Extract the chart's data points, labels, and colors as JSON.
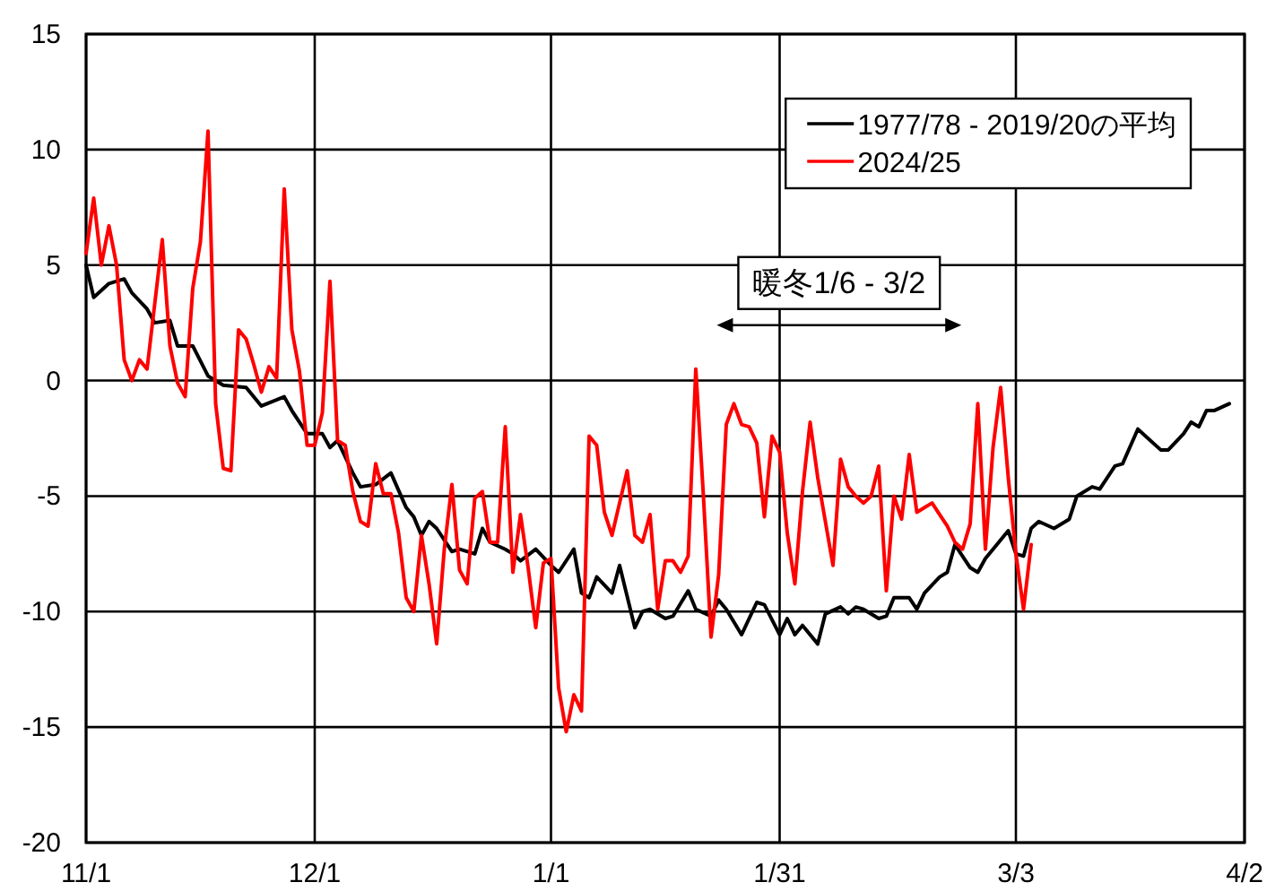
{
  "chart_data": {
    "type": "line",
    "xlim": [
      "2024-11-01",
      "2025-04-02"
    ],
    "xticks": [
      {
        "value": "2024-11-01",
        "label": "11/1"
      },
      {
        "value": "2024-12-01",
        "label": "12/1"
      },
      {
        "value": "2025-01-01",
        "label": "1/1"
      },
      {
        "value": "2025-01-31",
        "label": "1/31"
      },
      {
        "value": "2025-03-03",
        "label": "3/3"
      },
      {
        "value": "2025-04-02",
        "label": "4/2"
      }
    ],
    "ylim": [
      -20,
      15
    ],
    "yticks": [
      -20,
      -15,
      -10,
      -5,
      0,
      5,
      10,
      15
    ],
    "grid": true,
    "legend": "top right",
    "series": [
      {
        "name": "1977/78 - 2019/20の平均",
        "color": "#000000",
        "x": [
          "2024-11-01",
          "2024-11-02",
          "2024-11-04",
          "2024-11-06",
          "2024-11-07",
          "2024-11-09",
          "2024-11-10",
          "2024-11-12",
          "2024-11-13",
          "2024-11-15",
          "2024-11-17",
          "2024-11-19",
          "2024-11-22",
          "2024-11-24",
          "2024-11-27",
          "2024-11-28",
          "2024-11-30",
          "2024-12-02",
          "2024-12-03",
          "2024-12-04",
          "2024-12-06",
          "2024-12-07",
          "2024-12-09",
          "2024-12-11",
          "2024-12-13",
          "2024-12-14",
          "2024-12-15",
          "2024-12-16",
          "2024-12-17",
          "2024-12-19",
          "2024-12-20",
          "2024-12-22",
          "2024-12-23",
          "2024-12-24",
          "2024-12-26",
          "2024-12-27",
          "2024-12-28",
          "2024-12-30",
          "2025-01-01",
          "2025-01-02",
          "2025-01-04",
          "2025-01-05",
          "2025-01-06",
          "2025-01-07",
          "2025-01-09",
          "2025-01-10",
          "2025-01-12",
          "2025-01-13",
          "2025-01-14",
          "2025-01-16",
          "2025-01-17",
          "2025-01-19",
          "2025-01-20",
          "2025-01-22",
          "2025-01-23",
          "2025-01-24",
          "2025-01-26",
          "2025-01-28",
          "2025-01-29",
          "2025-01-31",
          "2025-02-01",
          "2025-02-02",
          "2025-02-03",
          "2025-02-05",
          "2025-02-06",
          "2025-02-08",
          "2025-02-09",
          "2025-02-10",
          "2025-02-11",
          "2025-02-13",
          "2025-02-14",
          "2025-02-15",
          "2025-02-17",
          "2025-02-18",
          "2025-02-19",
          "2025-02-21",
          "2025-02-22",
          "2025-02-23",
          "2025-02-25",
          "2025-02-26",
          "2025-02-27",
          "2025-02-28",
          "2025-03-02",
          "2025-03-03",
          "2025-03-04",
          "2025-03-05",
          "2025-03-06",
          "2025-03-08",
          "2025-03-10",
          "2025-03-11",
          "2025-03-13",
          "2025-03-14",
          "2025-03-16",
          "2025-03-17",
          "2025-03-19",
          "2025-03-20",
          "2025-03-22",
          "2025-03-23",
          "2025-03-25",
          "2025-03-26",
          "2025-03-27",
          "2025-03-28",
          "2025-03-29",
          "2025-03-31"
        ],
        "values": [
          5.0,
          3.6,
          4.2,
          4.4,
          3.8,
          3.1,
          2.5,
          2.6,
          1.5,
          1.5,
          0.2,
          -0.2,
          -0.3,
          -1.1,
          -0.7,
          -1.3,
          -2.3,
          -2.3,
          -2.9,
          -2.6,
          -4.0,
          -4.6,
          -4.5,
          -4.0,
          -5.5,
          -5.9,
          -6.7,
          -6.1,
          -6.4,
          -7.4,
          -7.3,
          -7.5,
          -6.4,
          -7.0,
          -7.3,
          -7.5,
          -7.8,
          -7.3,
          -8.0,
          -8.3,
          -7.3,
          -9.2,
          -9.4,
          -8.5,
          -9.2,
          -8.0,
          -10.7,
          -10.0,
          -9.9,
          -10.3,
          -10.2,
          -9.1,
          -9.9,
          -10.2,
          -9.5,
          -9.9,
          -11.0,
          -9.6,
          -9.7,
          -11.0,
          -10.3,
          -11.0,
          -10.6,
          -11.4,
          -10.1,
          -9.8,
          -10.1,
          -9.8,
          -9.9,
          -10.3,
          -10.2,
          -9.4,
          -9.4,
          -9.9,
          -9.2,
          -8.5,
          -8.3,
          -7.1,
          -8.1,
          -8.3,
          -7.7,
          -7.3,
          -6.5,
          -7.5,
          -7.6,
          -6.4,
          -6.1,
          -6.4,
          -6.0,
          -5.0,
          -4.6,
          -4.7,
          -3.7,
          -3.6,
          -2.1,
          -2.4,
          -3.0,
          -3.0,
          -2.3,
          -1.8,
          -2.0,
          -1.3,
          -1.3,
          -1.0
        ]
      },
      {
        "name": "2024/25",
        "color": "#ff0000",
        "x": [
          "2024-11-01",
          "2024-11-02",
          "2024-11-03",
          "2024-11-04",
          "2024-11-05",
          "2024-11-06",
          "2024-11-07",
          "2024-11-08",
          "2024-11-09",
          "2024-11-11",
          "2024-11-12",
          "2024-11-13",
          "2024-11-14",
          "2024-11-15",
          "2024-11-16",
          "2024-11-17",
          "2024-11-18",
          "2024-11-19",
          "2024-11-20",
          "2024-11-21",
          "2024-11-22",
          "2024-11-23",
          "2024-11-24",
          "2024-11-25",
          "2024-11-26",
          "2024-11-27",
          "2024-11-28",
          "2024-11-29",
          "2024-11-30",
          "2024-12-01",
          "2024-12-02",
          "2024-12-03",
          "2024-12-04",
          "2024-12-05",
          "2024-12-06",
          "2024-12-07",
          "2024-12-08",
          "2024-12-09",
          "2024-12-10",
          "2024-12-11",
          "2024-12-12",
          "2024-12-13",
          "2024-12-14",
          "2024-12-15",
          "2024-12-16",
          "2024-12-17",
          "2024-12-18",
          "2024-12-19",
          "2024-12-20",
          "2024-12-21",
          "2024-12-22",
          "2024-12-23",
          "2024-12-24",
          "2024-12-25",
          "2024-12-26",
          "2024-12-27",
          "2024-12-28",
          "2024-12-29",
          "2024-12-30",
          "2024-12-31",
          "2025-01-01",
          "2025-01-02",
          "2025-01-03",
          "2025-01-04",
          "2025-01-05",
          "2025-01-06",
          "2025-01-07",
          "2025-01-08",
          "2025-01-09",
          "2025-01-10",
          "2025-01-11",
          "2025-01-12",
          "2025-01-13",
          "2025-01-14",
          "2025-01-15",
          "2025-01-16",
          "2025-01-17",
          "2025-01-18",
          "2025-01-19",
          "2025-01-20",
          "2025-01-21",
          "2025-01-22",
          "2025-01-23",
          "2025-01-24",
          "2025-01-25",
          "2025-01-26",
          "2025-01-27",
          "2025-01-28",
          "2025-01-29",
          "2025-01-30",
          "2025-01-31",
          "2025-02-01",
          "2025-02-02",
          "2025-02-03",
          "2025-02-04",
          "2025-02-05",
          "2025-02-06",
          "2025-02-07",
          "2025-02-08",
          "2025-02-09",
          "2025-02-10",
          "2025-02-11",
          "2025-02-12",
          "2025-02-13",
          "2025-02-14",
          "2025-02-15",
          "2025-02-16",
          "2025-02-17",
          "2025-02-18",
          "2025-02-19",
          "2025-02-20",
          "2025-02-21",
          "2025-02-22",
          "2025-02-23",
          "2025-02-24",
          "2025-02-25",
          "2025-02-26",
          "2025-02-27",
          "2025-02-28",
          "2025-03-01",
          "2025-03-02",
          "2025-03-03",
          "2025-03-04",
          "2025-03-05"
        ],
        "values": [
          5.5,
          7.9,
          5.0,
          6.7,
          5.0,
          0.9,
          0,
          0.9,
          0.5,
          6.1,
          1.5,
          -0.1,
          -0.7,
          4.0,
          6.0,
          10.8,
          -1.0,
          -3.8,
          -3.9,
          2.2,
          1.8,
          0.7,
          -0.5,
          0.6,
          0.1,
          8.3,
          2.2,
          0.4,
          -2.8,
          -2.8,
          -1.4,
          4.3,
          -2.6,
          -2.8,
          -4.8,
          -6.1,
          -6.3,
          -3.6,
          -4.9,
          -4.9,
          -6.6,
          -9.4,
          -10.0,
          -6.7,
          -8.8,
          -11.4,
          -7.3,
          -4.5,
          -8.2,
          -8.8,
          -5.1,
          -4.8,
          -7.0,
          -7.0,
          -2.0,
          -8.3,
          -5.8,
          -8.1,
          -10.7,
          -7.9,
          -7.7,
          -13.3,
          -15.2,
          -13.6,
          -14.3,
          -2.4,
          -2.8,
          -5.7,
          -6.7,
          -5.3,
          -3.9,
          -6.7,
          -7.0,
          -5.8,
          -9.9,
          -7.8,
          -7.8,
          -8.3,
          -7.6,
          0.5,
          -5.0,
          -11.1,
          -8.4,
          -1.9,
          -1.0,
          -1.9,
          -2.0,
          -2.7,
          -5.9,
          -2.4,
          -3.1,
          -6.6,
          -8.8,
          -4.8,
          -1.8,
          -4.2,
          -6.1,
          -8.0,
          -3.4,
          -4.6,
          -5.0,
          -5.3,
          -5.0,
          -3.7,
          -9.1,
          -5.0,
          -6.0,
          -3.2,
          -5.7,
          -5.5,
          -5.3,
          -5.8,
          -6.3,
          -7.0,
          -7.3,
          -6.2,
          -1.0,
          -7.3,
          -2.9,
          -0.3,
          -4.2,
          -7.5,
          -9.9,
          -7.1
        ]
      }
    ],
    "annotations": [
      "暖冬1/6 - 3/2"
    ]
  }
}
